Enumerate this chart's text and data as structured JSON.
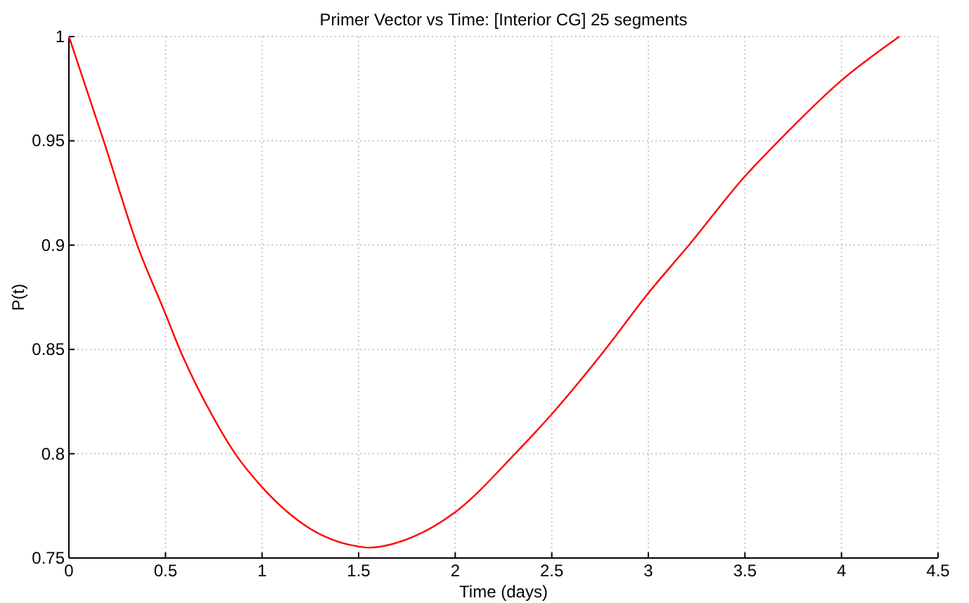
{
  "chart_data": {
    "type": "line",
    "title": "Primer Vector vs Time:  [Interior CG] 25 segments",
    "xlabel": "Time (days)",
    "ylabel": "P(t)",
    "x": [
      0,
      0.18,
      0.354,
      0.5,
      0.574,
      0.75,
      0.861,
      1,
      1.25,
      1.5,
      1.55,
      1.75,
      2,
      2.31,
      2.5,
      2.777,
      3,
      3.21,
      3.5,
      3.675,
      4,
      4.3
    ],
    "series": [
      {
        "color": "#ff0000",
        "values": [
          1,
          0.95,
          0.9,
          0.867,
          0.85,
          0.817,
          0.8,
          0.784,
          0.764,
          0.7555,
          0.755,
          0.759,
          0.772,
          0.8,
          0.819,
          0.85,
          0.877,
          0.9,
          0.933,
          0.95,
          0.979,
          1
        ]
      }
    ],
    "xlim": [
      0,
      4.5
    ],
    "xticks": [
      0,
      0.5,
      1,
      1.5,
      2,
      2.5,
      3,
      3.5,
      4,
      4.5
    ],
    "ylim": [
      0.75,
      1
    ],
    "yticks": [
      0.75,
      0.8,
      0.85,
      0.9,
      0.95,
      1
    ],
    "grid": true
  }
}
